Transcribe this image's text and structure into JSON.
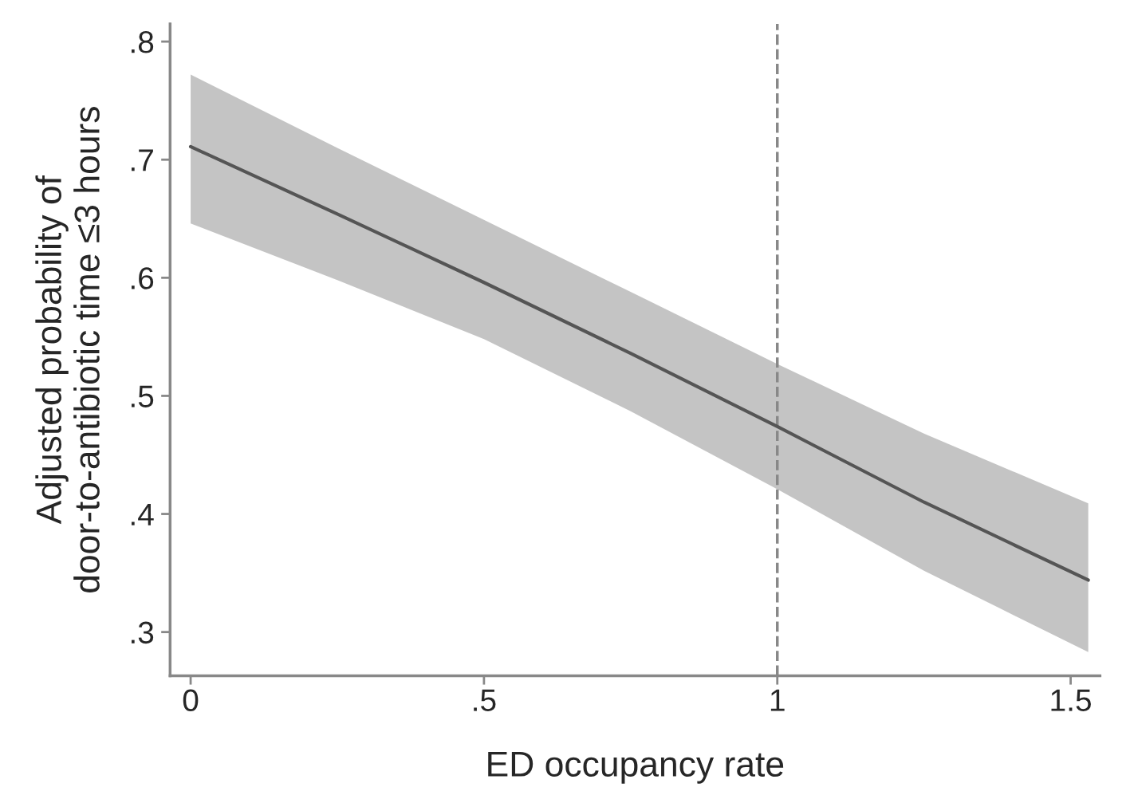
{
  "chart_data": {
    "type": "line",
    "xlabel": "ED occupancy rate",
    "ylabel": "Adjusted probability of\ndoor-to-antibiotic time ≤3 hours",
    "x": [
      0,
      0.25,
      0.5,
      0.75,
      1,
      1.25,
      1.53
    ],
    "series": [
      {
        "color": "#555555",
        "values": [
          0.711,
          0.654,
          0.596,
          0.536,
          0.474,
          0.41,
          0.344
        ],
        "lower": [
          0.646,
          0.598,
          0.548,
          0.487,
          0.421,
          0.352,
          0.283
        ],
        "upper": [
          0.772,
          0.71,
          0.649,
          0.588,
          0.527,
          0.468,
          0.409
        ]
      }
    ],
    "xlim": [
      -0.035,
      1.55
    ],
    "ylim": [
      0.263,
      0.815
    ],
    "xticks": [
      0,
      {
        "value": 0.5,
        "label": ".5"
      },
      1,
      1.5
    ],
    "yticks": [
      {
        "value": 0.3,
        "label": ".3"
      },
      {
        "value": 0.4,
        "label": ".4"
      },
      {
        "value": 0.5,
        "label": ".5"
      },
      {
        "value": 0.6,
        "label": ".6"
      },
      {
        "value": 0.7,
        "label": ".7"
      },
      {
        "value": 0.8,
        "label": ".8"
      }
    ],
    "ref_lines": [
      {
        "axis": "x",
        "value": 1,
        "color": "#888888",
        "line_style": "dashed"
      }
    ],
    "grid": false,
    "line_style": "solid",
    "marker": "none",
    "legend": false
  }
}
